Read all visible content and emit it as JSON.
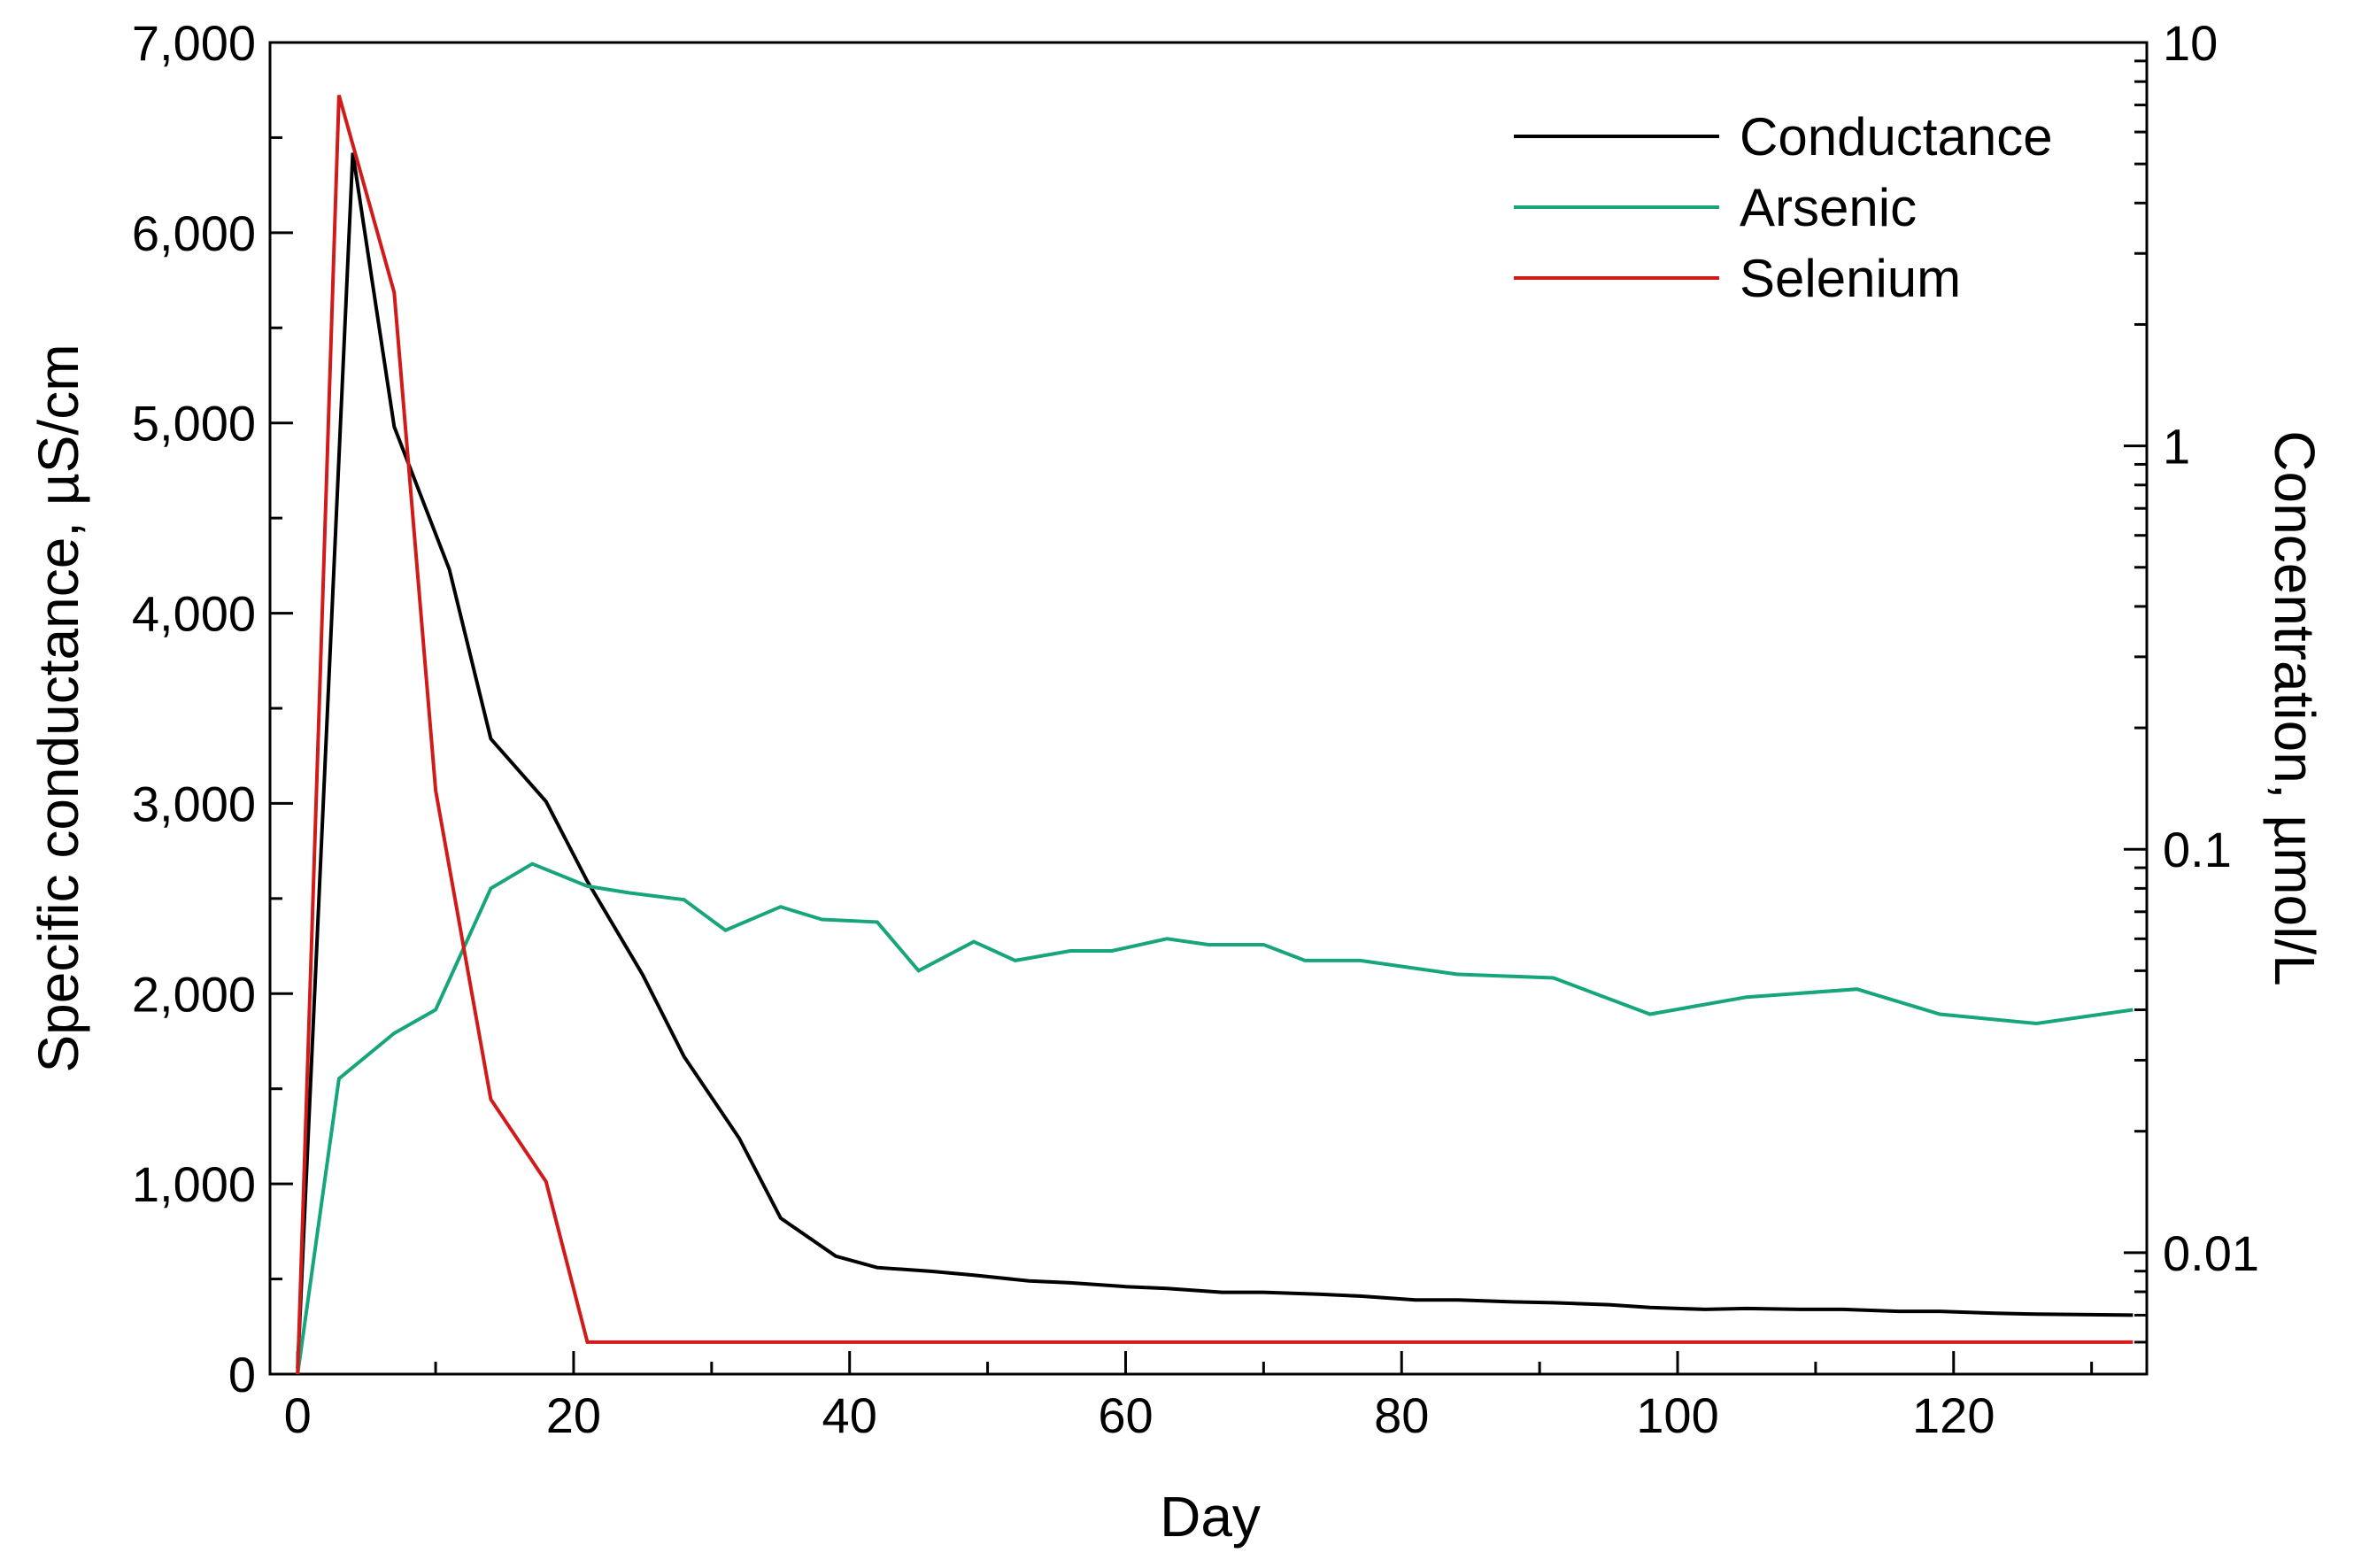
{
  "chart_data": {
    "type": "line",
    "title": "",
    "xlabel": "Day",
    "ylabel_left": "Specific conductance, µS/cm",
    "ylabel_right": "Concentration, µmol/L",
    "xlim": [
      -2,
      134
    ],
    "ylim_left": [
      0,
      7000
    ],
    "ylim_right": [
      0.005,
      10
    ],
    "right_scale": "log",
    "x_ticks": [
      0,
      20,
      40,
      60,
      80,
      100,
      120
    ],
    "x_tick_labels": [
      "0",
      "20",
      "40",
      "60",
      "80",
      "100",
      "120"
    ],
    "left_ticks": [
      0,
      1000,
      2000,
      3000,
      4000,
      5000,
      6000,
      7000
    ],
    "left_tick_labels": [
      "0",
      "1,000",
      "2,000",
      "3,000",
      "4,000",
      "5,000",
      "6,000",
      "7,000"
    ],
    "right_ticks": [
      0.01,
      0.1,
      1,
      10
    ],
    "right_tick_labels": [
      "0.01",
      "0.1",
      "1",
      "10"
    ],
    "legend_position": "top-right",
    "series": [
      {
        "name": "Conductance",
        "axis": "left",
        "color": "#000000",
        "x": [
          0,
          4,
          7,
          11,
          14,
          18,
          21,
          25,
          28,
          32,
          35,
          39,
          42,
          46,
          49,
          53,
          56,
          60,
          63,
          67,
          70,
          74,
          77,
          81,
          84,
          88,
          91,
          95,
          98,
          102,
          105,
          109,
          112,
          116,
          119,
          123,
          126,
          133
        ],
        "y": [
          30,
          6420,
          4980,
          4230,
          3340,
          3010,
          2590,
          2100,
          1670,
          1240,
          820,
          620,
          560,
          540,
          520,
          490,
          480,
          460,
          450,
          430,
          430,
          420,
          410,
          390,
          390,
          380,
          375,
          365,
          350,
          340,
          345,
          340,
          340,
          330,
          330,
          320,
          315,
          310
        ]
      },
      {
        "name": "Arsenic",
        "axis": "right",
        "color": "#17a57c",
        "x": [
          0,
          3,
          7,
          10,
          14,
          17,
          21,
          24,
          28,
          31,
          35,
          38,
          42,
          45,
          49,
          52,
          56,
          59,
          63,
          66,
          70,
          73,
          77,
          84,
          91,
          98,
          105,
          113,
          119,
          126,
          133
        ],
        "y": [
          0.005,
          0.027,
          0.035,
          0.04,
          0.08,
          0.092,
          0.081,
          0.078,
          0.075,
          0.063,
          0.072,
          0.067,
          0.066,
          0.05,
          0.059,
          0.053,
          0.056,
          0.056,
          0.06,
          0.058,
          0.058,
          0.053,
          0.053,
          0.049,
          0.048,
          0.039,
          0.043,
          0.045,
          0.039,
          0.037,
          0.04
        ]
      },
      {
        "name": "Selenium",
        "axis": "right",
        "color": "#d11a1a",
        "x": [
          0,
          3,
          7,
          10,
          14,
          18,
          21,
          30,
          50,
          80,
          110,
          133
        ],
        "y": [
          0.005,
          7.4,
          2.4,
          0.14,
          0.024,
          0.015,
          0.006,
          0.006,
          0.006,
          0.006,
          0.006,
          0.006
        ]
      }
    ]
  }
}
